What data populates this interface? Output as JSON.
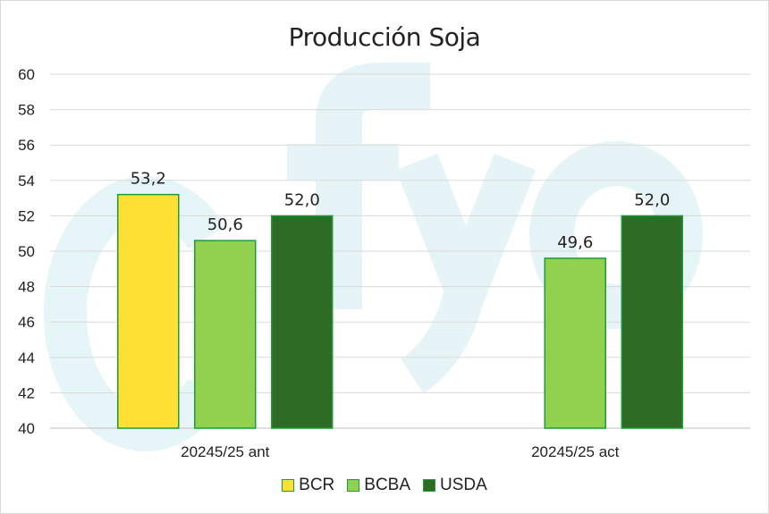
{
  "chart_data": {
    "type": "bar",
    "title": "Producción Soja",
    "categories": [
      "20245/25 ant",
      "20245/25 act"
    ],
    "series": [
      {
        "name": "BCR",
        "color": "#ffe135",
        "values": [
          53.2,
          null
        ]
      },
      {
        "name": "BCBA",
        "color": "#92d050",
        "values": [
          50.6,
          49.6
        ]
      },
      {
        "name": "USDA",
        "color": "#2e6b24",
        "values": [
          52.0,
          52.0
        ]
      }
    ],
    "data_labels": [
      [
        "53,2",
        "50,6",
        "52,0"
      ],
      [
        "",
        "49,6",
        "52,0"
      ]
    ],
    "yticks": [
      "40",
      "42",
      "44",
      "46",
      "48",
      "50",
      "52",
      "54",
      "56",
      "58",
      "60"
    ],
    "ylim": [
      40,
      60
    ],
    "grid": true,
    "legend": "bottom",
    "watermark": "fyo"
  }
}
